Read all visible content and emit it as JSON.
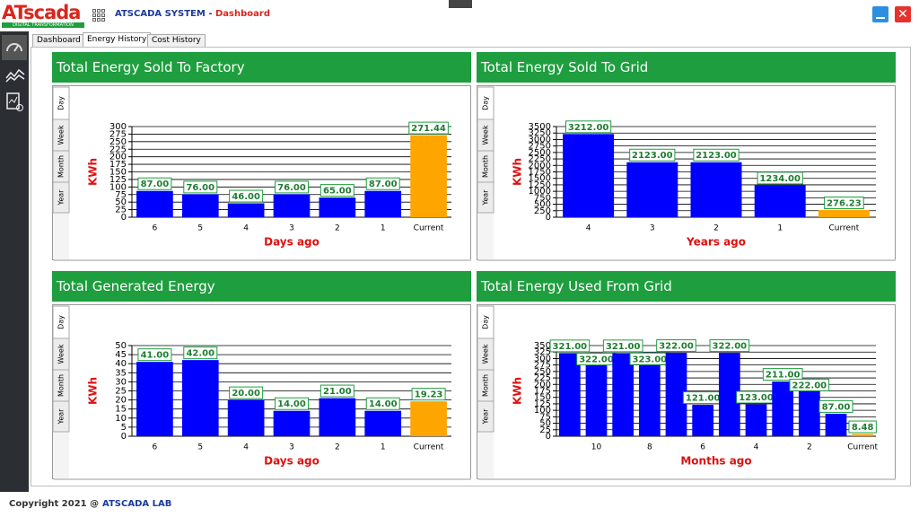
{
  "header": {
    "logo_main": "ATscada",
    "logo_sub": "DIGITAL TRANSFORMATION",
    "system": "ATSCADA SYSTEM -",
    "page": "Dashboard"
  },
  "tabs": [
    "Dashboard",
    "Energy History",
    "Cost History"
  ],
  "chart_data": [
    {
      "type": "bar",
      "title": "Total Energy Sold To Factory",
      "side_tabs": [
        "Day",
        "Week",
        "Month",
        "Year"
      ],
      "ylabel": "KWh",
      "xlabel": "Days ago",
      "categories": [
        "6",
        "5",
        "4",
        "3",
        "2",
        "1",
        "Current"
      ],
      "values": [
        87,
        76,
        46,
        76,
        65,
        87,
        271.44
      ],
      "value_labels": [
        "87.00",
        "76.00",
        "46.00",
        "76.00",
        "65.00",
        "87.00",
        "271.44"
      ],
      "colors": [
        "#0000ff",
        "#0000ff",
        "#0000ff",
        "#0000ff",
        "#0000ff",
        "#0000ff",
        "#ffa500"
      ],
      "ylim": [
        0,
        300
      ],
      "yticks": [
        0,
        25,
        50,
        75,
        100,
        125,
        150,
        175,
        200,
        225,
        250,
        275,
        300
      ],
      "grid": true
    },
    {
      "type": "bar",
      "title": "Total Energy Sold To Grid",
      "side_tabs": [
        "Day",
        "Week",
        "Month",
        "Year"
      ],
      "ylabel": "KWh",
      "xlabel": "Years ago",
      "categories": [
        "4",
        "3",
        "2",
        "1",
        "Current"
      ],
      "values": [
        3212,
        2123,
        2123,
        1234,
        276.23
      ],
      "value_labels": [
        "3212.00",
        "2123.00",
        "2123.00",
        "1234.00",
        "276.23"
      ],
      "colors": [
        "#0000ff",
        "#0000ff",
        "#0000ff",
        "#0000ff",
        "#ffa500"
      ],
      "ylim": [
        0,
        3500
      ],
      "yticks": [
        0,
        250,
        500,
        750,
        1000,
        1250,
        1500,
        1750,
        2000,
        2250,
        2500,
        2750,
        3000,
        3250,
        3500
      ],
      "grid": true
    },
    {
      "type": "bar",
      "title": "Total Generated Energy",
      "side_tabs": [
        "Day",
        "Week",
        "Month",
        "Year"
      ],
      "ylabel": "KWh",
      "xlabel": "Days ago",
      "categories": [
        "6",
        "5",
        "4",
        "3",
        "2",
        "1",
        "Current"
      ],
      "values": [
        41,
        42,
        20,
        14,
        21,
        14,
        19.23
      ],
      "value_labels": [
        "41.00",
        "42.00",
        "20.00",
        "14.00",
        "21.00",
        "14.00",
        "19.23"
      ],
      "colors": [
        "#0000ff",
        "#0000ff",
        "#0000ff",
        "#0000ff",
        "#0000ff",
        "#0000ff",
        "#ffa500"
      ],
      "ylim": [
        0,
        50
      ],
      "yticks": [
        0,
        5,
        10,
        15,
        20,
        25,
        30,
        35,
        40,
        45,
        50
      ],
      "grid": true
    },
    {
      "type": "bar",
      "title": "Total Energy Used From Grid",
      "side_tabs": [
        "Day",
        "Week",
        "Month",
        "Year"
      ],
      "ylabel": "KWh",
      "xlabel": "Months ago",
      "categories": [
        null,
        "10",
        null,
        "8",
        null,
        "6",
        null,
        "4",
        null,
        "2",
        null,
        "Current"
      ],
      "values": [
        321,
        322,
        321,
        323,
        322,
        121,
        322,
        123,
        211,
        222,
        87,
        8.48
      ],
      "value_labels": [
        "321.00",
        "322.00",
        "321.00",
        "323.00",
        "322.00",
        "121.00",
        "322.00",
        "123.00",
        "211.00",
        "222.00",
        "87.00",
        "8.48"
      ],
      "colors": [
        "#0000ff",
        "#0000ff",
        "#0000ff",
        "#0000ff",
        "#0000ff",
        "#0000ff",
        "#0000ff",
        "#0000ff",
        "#0000ff",
        "#0000ff",
        "#0000ff",
        "#ffa500"
      ],
      "ylim": [
        0,
        350
      ],
      "yticks": [
        0,
        25,
        50,
        75,
        100,
        125,
        150,
        175,
        200,
        225,
        250,
        275,
        300,
        325,
        350
      ],
      "grid": true
    }
  ],
  "footer": {
    "copyright": "Copyright 2021 @",
    "lab": "ATSCADA LAB"
  }
}
